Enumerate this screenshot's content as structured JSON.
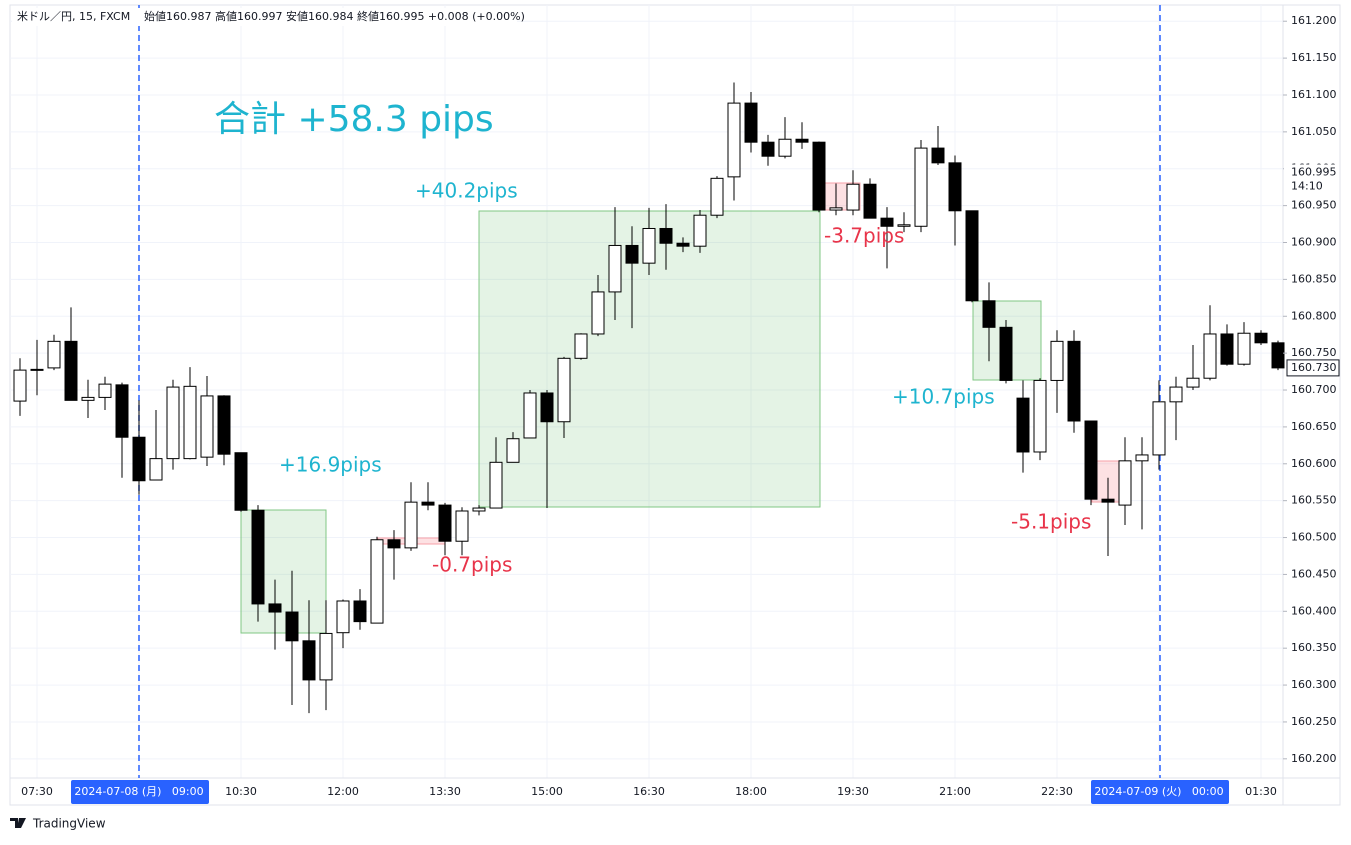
{
  "chart_data": {
    "type": "candlestick",
    "header": "米ドル／円, 15, FXCM",
    "ohlc_text": "始値160.987  高値160.997  安値160.984  終値160.995  +0.008 (+0.00%)",
    "brand": "TradingView",
    "annotations": [
      "合計 +58.3 pips",
      "+40.2pips",
      "+16.9pips",
      "-0.7pips",
      "-3.7pips",
      "+10.7pips",
      "-5.1pips"
    ],
    "categories": [
      null,
      "07:30",
      null,
      null,
      null,
      null,
      null,
      "2024-07-08 (月)   09:00",
      null,
      null,
      null,
      null,
      null,
      "10:30",
      null,
      null,
      null,
      null,
      null,
      "12:00",
      null,
      null,
      null,
      null,
      null,
      "13:30",
      null,
      null,
      null,
      null,
      null,
      "15:00",
      null,
      null,
      null,
      null,
      null,
      "16:30",
      null,
      null,
      null,
      null,
      null,
      "18:00",
      null,
      null,
      null,
      null,
      null,
      "19:30",
      null,
      null,
      null,
      null,
      null,
      "21:00",
      null,
      null,
      null,
      null,
      null,
      "22:30",
      null,
      null,
      null,
      null,
      null,
      "2024-07-09 (火)   00:00",
      null,
      null,
      null,
      null,
      null,
      "01:30",
      null
    ],
    "highlighted_ticks": [
      7,
      67
    ],
    "open": [
      160.685,
      160.727,
      160.73,
      160.766,
      160.686,
      160.69,
      160.707,
      160.636,
      160.578,
      160.607,
      160.607,
      160.609,
      160.692,
      160.615,
      160.537,
      160.41,
      160.399,
      160.36,
      160.307,
      160.371,
      160.414,
      160.384,
      160.497,
      160.486,
      160.548,
      160.544,
      160.495,
      160.536,
      160.54,
      160.602,
      160.635,
      160.696,
      160.657,
      160.743,
      160.776,
      160.833,
      160.896,
      160.872,
      160.919,
      160.899,
      160.895,
      160.937,
      160.989,
      161.089,
      161.036,
      161.017,
      161.04,
      161.036,
      160.944,
      160.944,
      160.979,
      160.933,
      160.922,
      160.922,
      161.028,
      161.008,
      160.943,
      160.821,
      160.785,
      160.689,
      160.616,
      160.713,
      160.766,
      160.658,
      160.552,
      160.544,
      160.604,
      160.612,
      160.684,
      160.704,
      160.716,
      160.776,
      160.735,
      160.777,
      160.764
    ],
    "high": [
      160.743,
      160.768,
      160.775,
      160.812,
      160.714,
      160.718,
      160.71,
      160.686,
      160.673,
      160.714,
      160.731,
      160.719,
      160.693,
      160.615,
      160.544,
      160.443,
      160.455,
      160.415,
      160.415,
      160.416,
      160.43,
      160.501,
      160.51,
      160.575,
      160.575,
      160.547,
      160.541,
      160.544,
      160.636,
      160.643,
      160.7,
      160.7,
      160.745,
      160.777,
      160.856,
      160.948,
      160.922,
      160.947,
      160.952,
      160.907,
      160.944,
      160.99,
      161.117,
      161.104,
      161.046,
      161.07,
      161.063,
      161.037,
      160.98,
      160.998,
      160.987,
      160.948,
      160.941,
      161.039,
      161.058,
      161.018,
      160.943,
      160.846,
      160.795,
      160.713,
      160.716,
      160.781,
      160.781,
      160.658,
      160.581,
      160.636,
      160.636,
      160.713,
      160.718,
      160.761,
      160.815,
      160.789,
      160.792,
      160.781,
      160.767
    ],
    "low": [
      160.665,
      160.693,
      160.727,
      160.686,
      160.662,
      160.673,
      160.581,
      160.558,
      160.578,
      160.592,
      160.606,
      160.597,
      160.598,
      160.535,
      160.386,
      160.348,
      160.273,
      160.262,
      160.266,
      160.35,
      160.375,
      160.384,
      160.443,
      160.482,
      160.537,
      160.476,
      160.476,
      160.53,
      160.54,
      160.602,
      160.635,
      160.54,
      160.635,
      160.741,
      160.773,
      160.795,
      160.784,
      160.856,
      160.863,
      160.887,
      160.886,
      160.933,
      160.957,
      161.022,
      161.004,
      161.014,
      161.027,
      160.941,
      160.937,
      160.937,
      160.933,
      160.865,
      160.914,
      160.914,
      161.005,
      160.896,
      160.819,
      160.739,
      160.709,
      160.588,
      160.605,
      160.669,
      160.642,
      160.544,
      160.475,
      160.517,
      160.511,
      160.592,
      160.632,
      160.7,
      160.713,
      160.733,
      160.733,
      160.761,
      160.727
    ],
    "close": [
      160.727,
      160.728,
      160.766,
      160.686,
      160.69,
      160.708,
      160.636,
      160.577,
      160.607,
      160.704,
      160.705,
      160.692,
      160.613,
      160.537,
      160.41,
      160.399,
      160.36,
      160.307,
      160.37,
      160.414,
      160.386,
      160.497,
      160.486,
      160.548,
      160.544,
      160.495,
      160.536,
      160.54,
      160.602,
      160.634,
      160.696,
      160.657,
      160.743,
      160.776,
      160.833,
      160.896,
      160.872,
      160.919,
      160.899,
      160.895,
      160.937,
      160.987,
      161.089,
      161.036,
      161.017,
      161.04,
      161.036,
      160.944,
      160.947,
      160.979,
      160.933,
      160.922,
      160.924,
      161.028,
      161.008,
      160.943,
      160.821,
      160.785,
      160.713,
      160.616,
      160.713,
      160.766,
      160.658,
      160.552,
      160.548,
      160.604,
      160.612,
      160.684,
      160.704,
      160.716,
      160.776,
      160.735,
      160.777,
      160.764,
      160.73
    ],
    "up_color": "#ffffff",
    "down_color": "#000000",
    "wick_color": "#000000",
    "ylim": [
      160.174,
      161.222
    ],
    "yticks": [
      {
        "value": 160.2,
        "label": "160.200"
      },
      {
        "value": 160.25,
        "label": "160.250"
      },
      {
        "value": 160.3,
        "label": "160.300"
      },
      {
        "value": 160.35,
        "label": "160.350"
      },
      {
        "value": 160.4,
        "label": "160.400"
      },
      {
        "value": 160.45,
        "label": "160.450"
      },
      {
        "value": 160.5,
        "label": "160.500"
      },
      {
        "value": 160.55,
        "label": "160.550"
      },
      {
        "value": 160.6,
        "label": "160.600"
      },
      {
        "value": 160.65,
        "label": "160.650"
      },
      {
        "value": 160.7,
        "label": "160.700"
      },
      {
        "value": 160.75,
        "label": "160.750"
      },
      {
        "value": 160.8,
        "label": "160.800"
      },
      {
        "value": 160.85,
        "label": "160.850"
      },
      {
        "value": 160.9,
        "label": "160.900"
      },
      {
        "value": 160.95,
        "label": "160.950"
      },
      {
        "value": 161.0,
        "label": "161.000"
      },
      {
        "value": 161.05,
        "label": "161.050"
      },
      {
        "value": 161.1,
        "label": "161.100"
      },
      {
        "value": 161.15,
        "label": "161.150"
      },
      {
        "value": 161.2,
        "label": "161.200"
      }
    ],
    "price_tag": {
      "value": 160.995,
      "label": "160.995"
    },
    "countdown": "14:10",
    "last_price": {
      "value": 160.73,
      "label": "160.730"
    },
    "grid": true
  }
}
